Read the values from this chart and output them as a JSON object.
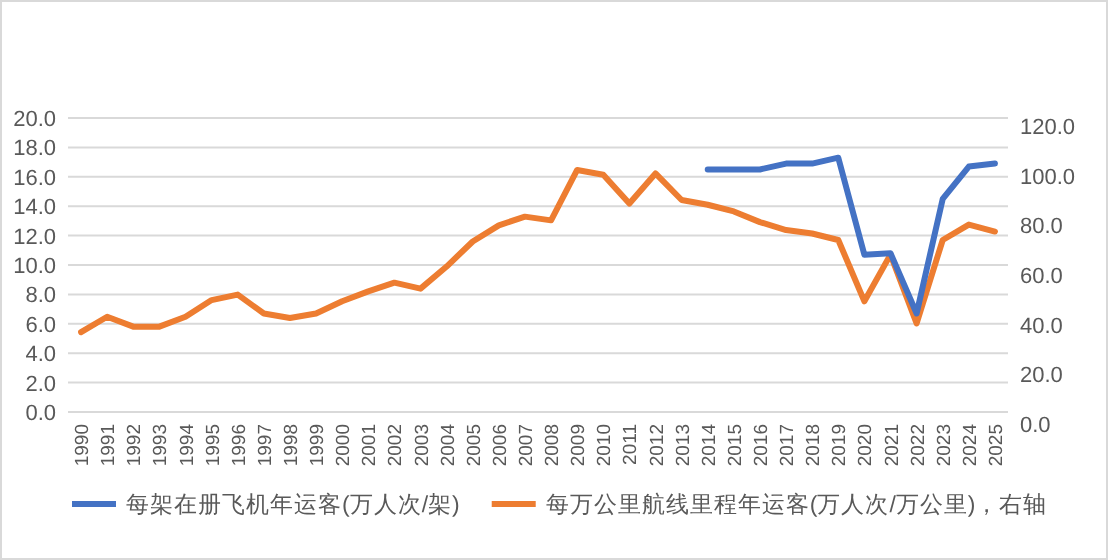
{
  "chart_data": {
    "type": "line",
    "categories": [
      "1990",
      "1991",
      "1992",
      "1993",
      "1994",
      "1995",
      "1996",
      "1997",
      "1998",
      "1999",
      "2000",
      "2001",
      "2002",
      "2003",
      "2004",
      "2005",
      "2006",
      "2007",
      "2008",
      "2009",
      "2010",
      "2011",
      "2012",
      "2013",
      "2014",
      "2015",
      "2016",
      "2017",
      "2018",
      "2019",
      "2020",
      "2021",
      "2022",
      "2023",
      "2024",
      "2025"
    ],
    "series": [
      {
        "name": "每架在册飞机年运客(万人次/架)",
        "color": "#4472c4",
        "values": [
          null,
          null,
          null,
          null,
          null,
          null,
          null,
          null,
          null,
          null,
          null,
          null,
          null,
          null,
          null,
          null,
          null,
          null,
          null,
          null,
          null,
          null,
          null,
          null,
          16.5,
          16.5,
          16.5,
          16.9,
          16.9,
          17.3,
          10.7,
          10.8,
          6.7,
          14.5,
          16.7,
          16.9
        ]
      },
      {
        "name": "每万公里航线里程年运客(万人次/万公里)，右轴",
        "color": "#ed7d31",
        "axis": "y2",
        "values": [
          37.0,
          43.2,
          39.2,
          39.2,
          43.2,
          49.9,
          52.1,
          44.5,
          42.7,
          44.5,
          49.4,
          53.4,
          56.9,
          54.5,
          63.4,
          73.5,
          80.0,
          83.5,
          82.0,
          102.3,
          100.4,
          88.8,
          100.9,
          90.2,
          88.3,
          85.6,
          81.3,
          78.1,
          76.7,
          74.1,
          49.4,
          68.2,
          40.5,
          74.1,
          80.3,
          77.5
        ]
      }
    ],
    "ylim": [
      0,
      20
    ],
    "yticks": [
      {
        "value": 0,
        "label": "0.0"
      },
      {
        "value": 2,
        "label": "2.0"
      },
      {
        "value": 4,
        "label": "4.0"
      },
      {
        "value": 6,
        "label": "6.0"
      },
      {
        "value": 8,
        "label": "8.0"
      },
      {
        "value": 10,
        "label": "10.0"
      },
      {
        "value": 12,
        "label": "12.0"
      },
      {
        "value": 14,
        "label": "14.0"
      },
      {
        "value": 16,
        "label": "16.0"
      },
      {
        "value": 18,
        "label": "18.0"
      },
      {
        "value": 20,
        "label": "20.0"
      }
    ],
    "y2lim": [
      0,
      120
    ],
    "y2ticks": [
      {
        "value": 0,
        "label": "0.0"
      },
      {
        "value": 20,
        "label": "20.0"
      },
      {
        "value": 40,
        "label": "40.0"
      },
      {
        "value": 60,
        "label": "60.0"
      },
      {
        "value": 80,
        "label": "80.0"
      },
      {
        "value": 100,
        "label": "100.0"
      },
      {
        "value": 120,
        "label": "120.0"
      }
    ],
    "grid": "y",
    "legend": "bottom"
  }
}
